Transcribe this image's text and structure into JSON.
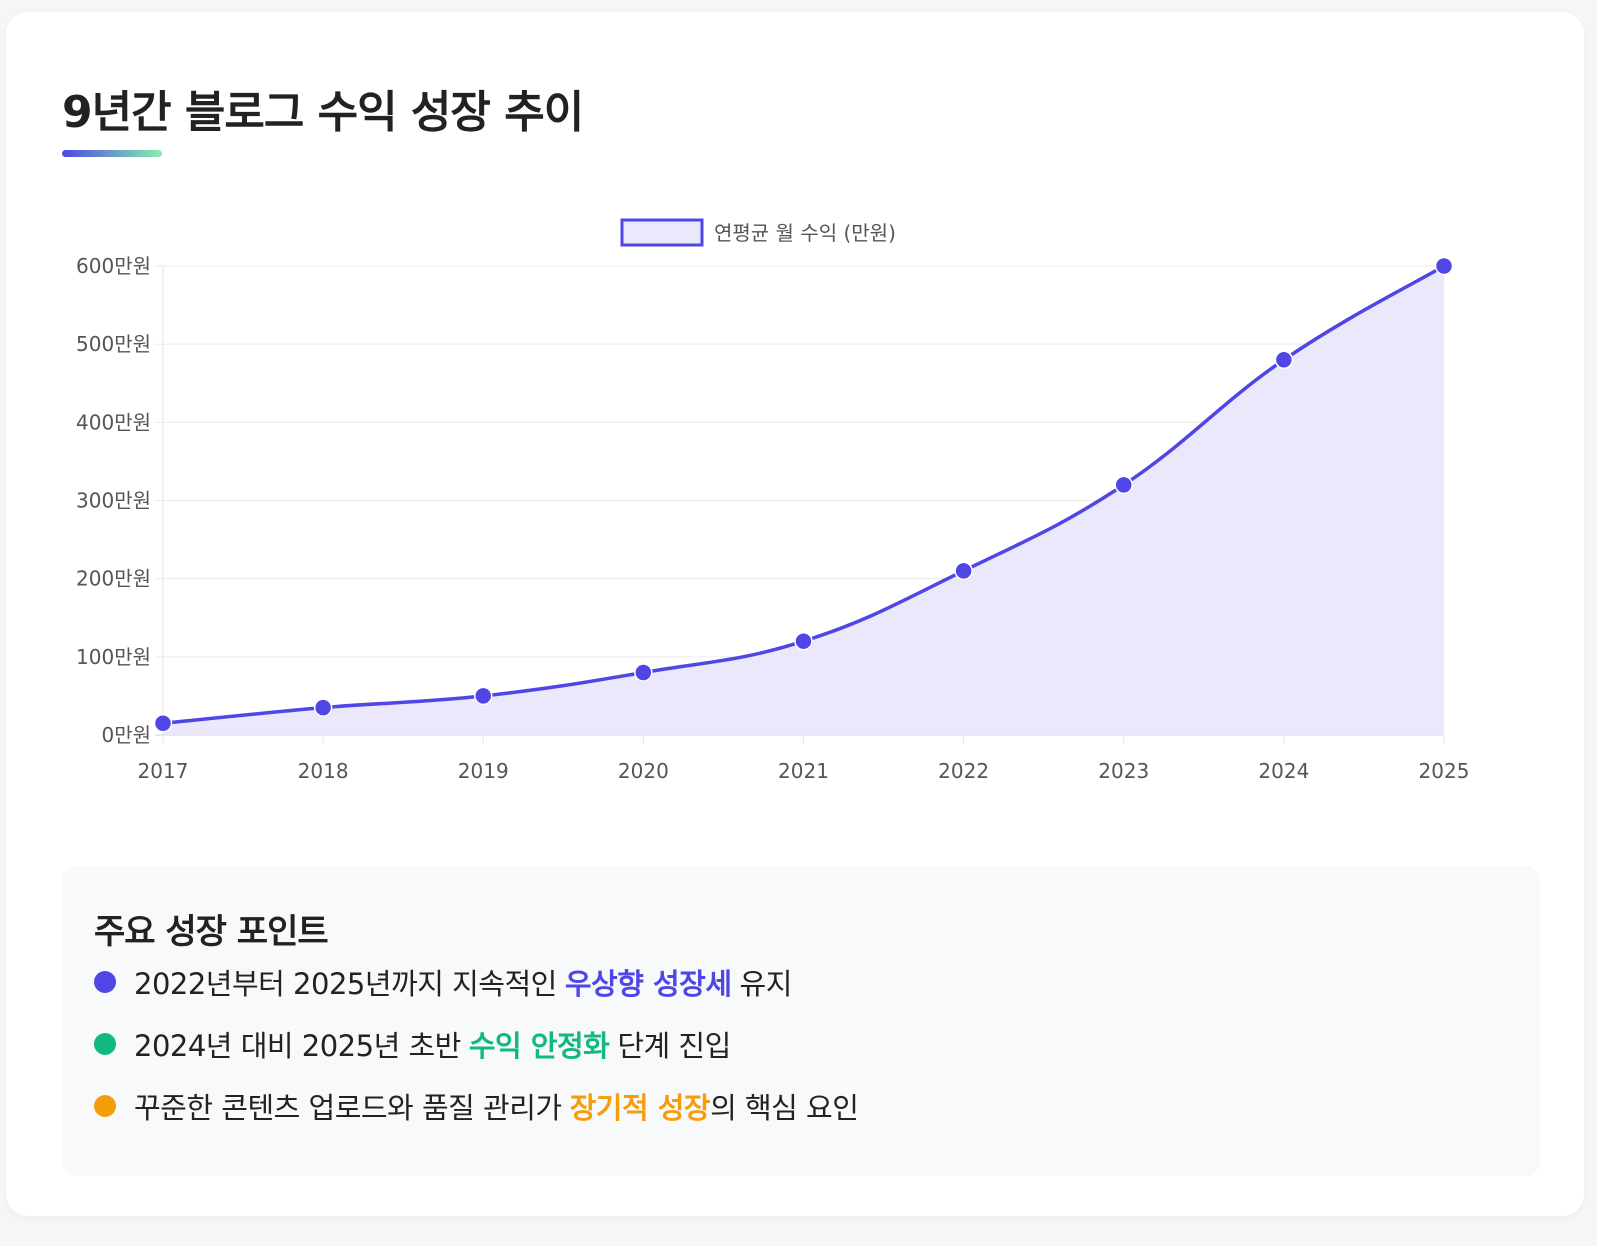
{
  "title": "9년간 블로그 수익 성장 추이",
  "chart_data": {
    "type": "line",
    "fill": true,
    "categories": [
      "2017",
      "2018",
      "2019",
      "2020",
      "2021",
      "2022",
      "2023",
      "2024",
      "2025"
    ],
    "series": [
      {
        "name": "연평균 월 수익 (만원)",
        "values": [
          15,
          35,
          50,
          80,
          120,
          210,
          320,
          480,
          600
        ]
      }
    ],
    "ylim": [
      0,
      600
    ],
    "yticks": [
      0,
      100,
      200,
      300,
      400,
      500,
      600
    ],
    "ytick_suffix": "만원",
    "legend_position": "top-center",
    "grid": true,
    "line_color": "#4f46e5",
    "fill_color": "#eae8fa"
  },
  "points": {
    "title": "주요 성장 포인트",
    "items": [
      {
        "before": "2022년부터 2025년까지 지속적인",
        "highlight": "우상향 성장세",
        "after": "유지",
        "color": "#4f46e5"
      },
      {
        "before": "2024년 대비 2025년 초반",
        "highlight": "수익 안정화",
        "after": "단계 진입",
        "color": "#10b981"
      },
      {
        "before": "꾸준한 콘텐츠 업로드와 품질 관리가",
        "highlight": "장기적 성장",
        "after": "의 핵심 요인",
        "color": "#f59e0b"
      }
    ]
  }
}
